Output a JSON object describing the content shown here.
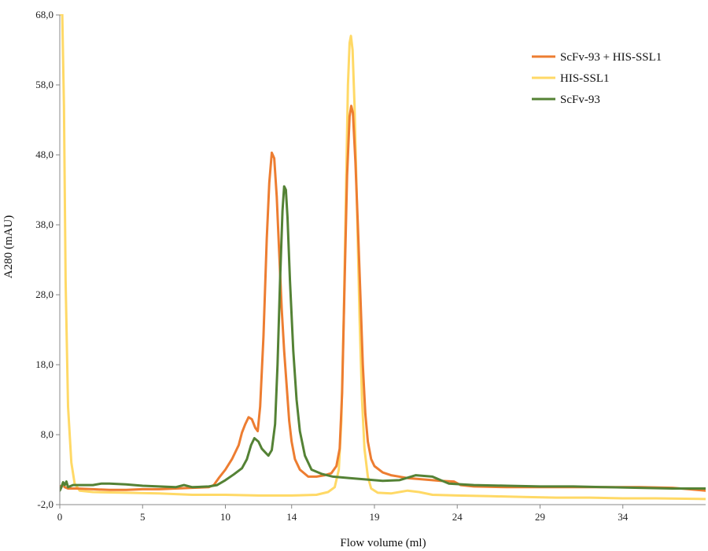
{
  "chart_data": {
    "type": "line",
    "title": "",
    "xlabel": "Flow volume (ml)",
    "ylabel": "A280 (mAU)",
    "xlim": [
      0,
      39
    ],
    "ylim": [
      -2.0,
      68.0
    ],
    "xticks": [
      0,
      5,
      10,
      14,
      19,
      24,
      29,
      34
    ],
    "xtick_labels": [
      "0",
      "5",
      "10",
      "14",
      "19",
      "24",
      "29",
      "34"
    ],
    "yticks": [
      -2.0,
      8.0,
      18.0,
      28.0,
      38.0,
      48.0,
      58.0,
      68.0
    ],
    "ytick_labels": [
      "-2,0",
      "8,0",
      "18,0",
      "28,0",
      "38,0",
      "48,0",
      "58,0",
      "68,0"
    ],
    "grid": false,
    "legend_position": "top-right",
    "series": [
      {
        "name": "ScFv-93 + HIS-SSL1",
        "color": "#ED7D31",
        "points": [
          [
            0.0,
            0.6
          ],
          [
            0.2,
            0.8
          ],
          [
            0.3,
            0.5
          ],
          [
            0.5,
            0.3
          ],
          [
            1,
            0.3
          ],
          [
            2,
            0.2
          ],
          [
            3,
            0.1
          ],
          [
            4,
            0.1
          ],
          [
            5,
            0.2
          ],
          [
            6,
            0.2
          ],
          [
            7,
            0.3
          ],
          [
            8,
            0.4
          ],
          [
            9,
            0.5
          ],
          [
            9.3,
            0.8
          ],
          [
            9.6,
            1.8
          ],
          [
            10,
            3.0
          ],
          [
            10.4,
            4.5
          ],
          [
            10.8,
            6.5
          ],
          [
            11.0,
            8.3
          ],
          [
            11.2,
            9.5
          ],
          [
            11.4,
            10.5
          ],
          [
            11.6,
            10.2
          ],
          [
            11.8,
            9.0
          ],
          [
            11.95,
            8.5
          ],
          [
            12.1,
            12.0
          ],
          [
            12.3,
            22.0
          ],
          [
            12.5,
            36.0
          ],
          [
            12.65,
            44.0
          ],
          [
            12.8,
            48.3
          ],
          [
            12.95,
            47.5
          ],
          [
            13.1,
            42.0
          ],
          [
            13.25,
            34.0
          ],
          [
            13.4,
            26.0
          ],
          [
            13.55,
            20.0
          ],
          [
            13.7,
            15.0
          ],
          [
            13.85,
            10.0
          ],
          [
            14.0,
            7.0
          ],
          [
            14.2,
            4.5
          ],
          [
            14.5,
            3.0
          ],
          [
            15.0,
            2.0
          ],
          [
            15.5,
            2.0
          ],
          [
            16.0,
            2.2
          ],
          [
            16.4,
            2.5
          ],
          [
            16.7,
            3.5
          ],
          [
            16.9,
            6.0
          ],
          [
            17.05,
            14.0
          ],
          [
            17.2,
            30.0
          ],
          [
            17.35,
            45.0
          ],
          [
            17.5,
            53.5
          ],
          [
            17.6,
            55.0
          ],
          [
            17.7,
            54.0
          ],
          [
            17.85,
            47.0
          ],
          [
            18.0,
            38.0
          ],
          [
            18.15,
            28.0
          ],
          [
            18.3,
            18.0
          ],
          [
            18.45,
            11.0
          ],
          [
            18.6,
            7.0
          ],
          [
            18.8,
            4.5
          ],
          [
            19.0,
            3.5
          ],
          [
            19.5,
            2.6
          ],
          [
            20,
            2.2
          ],
          [
            21,
            1.8
          ],
          [
            22,
            1.6
          ],
          [
            23,
            1.4
          ],
          [
            23.8,
            1.3
          ],
          [
            24.2,
            0.8
          ],
          [
            25,
            0.6
          ],
          [
            27,
            0.5
          ],
          [
            29,
            0.5
          ],
          [
            31,
            0.5
          ],
          [
            33,
            0.5
          ],
          [
            35,
            0.5
          ],
          [
            37,
            0.4
          ],
          [
            38,
            0.2
          ],
          [
            39,
            0.0
          ]
        ]
      },
      {
        "name": "HIS-SSL1",
        "color": "#FFD966",
        "points": [
          [
            0.0,
            68.0
          ],
          [
            0.12,
            72.0
          ],
          [
            0.25,
            55.0
          ],
          [
            0.35,
            30.0
          ],
          [
            0.5,
            12.0
          ],
          [
            0.7,
            4.0
          ],
          [
            0.9,
            1.0
          ],
          [
            1.2,
            0.0
          ],
          [
            2,
            -0.2
          ],
          [
            4,
            -0.3
          ],
          [
            6,
            -0.4
          ],
          [
            8,
            -0.6
          ],
          [
            10,
            -0.6
          ],
          [
            12,
            -0.7
          ],
          [
            14,
            -0.7
          ],
          [
            15.5,
            -0.6
          ],
          [
            16.2,
            -0.2
          ],
          [
            16.6,
            0.5
          ],
          [
            16.85,
            3.0
          ],
          [
            17.0,
            10.0
          ],
          [
            17.15,
            25.0
          ],
          [
            17.3,
            45.0
          ],
          [
            17.4,
            58.0
          ],
          [
            17.5,
            64.0
          ],
          [
            17.58,
            65.0
          ],
          [
            17.68,
            63.0
          ],
          [
            17.8,
            55.0
          ],
          [
            17.95,
            40.0
          ],
          [
            18.1,
            25.0
          ],
          [
            18.25,
            13.0
          ],
          [
            18.4,
            6.0
          ],
          [
            18.6,
            2.0
          ],
          [
            18.8,
            0.3
          ],
          [
            19.2,
            -0.3
          ],
          [
            20,
            -0.4
          ],
          [
            21,
            0.0
          ],
          [
            21.7,
            -0.2
          ],
          [
            22.5,
            -0.6
          ],
          [
            24,
            -0.7
          ],
          [
            26,
            -0.8
          ],
          [
            28,
            -0.9
          ],
          [
            30,
            -1.0
          ],
          [
            32,
            -1.0
          ],
          [
            34,
            -1.1
          ],
          [
            36,
            -1.1
          ],
          [
            39,
            -1.2
          ]
        ]
      },
      {
        "name": "ScFv-93",
        "color": "#548235",
        "points": [
          [
            0.0,
            0.0
          ],
          [
            0.1,
            0.5
          ],
          [
            0.2,
            1.2
          ],
          [
            0.3,
            0.8
          ],
          [
            0.4,
            1.3
          ],
          [
            0.5,
            0.5
          ],
          [
            0.8,
            0.8
          ],
          [
            1.5,
            0.8
          ],
          [
            2.0,
            0.8
          ],
          [
            2.5,
            1.0
          ],
          [
            3.0,
            1.0
          ],
          [
            4.0,
            0.9
          ],
          [
            5.0,
            0.7
          ],
          [
            6.0,
            0.6
          ],
          [
            7.0,
            0.5
          ],
          [
            7.5,
            0.8
          ],
          [
            8.0,
            0.5
          ],
          [
            9.0,
            0.6
          ],
          [
            9.5,
            0.8
          ],
          [
            10.0,
            1.5
          ],
          [
            10.5,
            2.3
          ],
          [
            11.0,
            3.2
          ],
          [
            11.3,
            4.5
          ],
          [
            11.55,
            6.5
          ],
          [
            11.75,
            7.5
          ],
          [
            12.0,
            7.0
          ],
          [
            12.2,
            6.0
          ],
          [
            12.4,
            5.5
          ],
          [
            12.6,
            5.0
          ],
          [
            12.8,
            5.8
          ],
          [
            13.0,
            9.5
          ],
          [
            13.15,
            18.0
          ],
          [
            13.3,
            30.0
          ],
          [
            13.45,
            40.0
          ],
          [
            13.55,
            43.5
          ],
          [
            13.65,
            43.0
          ],
          [
            13.75,
            39.0
          ],
          [
            13.9,
            30.0
          ],
          [
            14.1,
            20.0
          ],
          [
            14.3,
            13.0
          ],
          [
            14.5,
            8.5
          ],
          [
            14.8,
            5.0
          ],
          [
            15.2,
            3.0
          ],
          [
            15.8,
            2.4
          ],
          [
            16.5,
            2.0
          ],
          [
            17.5,
            1.8
          ],
          [
            18.5,
            1.6
          ],
          [
            19.5,
            1.4
          ],
          [
            20.5,
            1.5
          ],
          [
            21.5,
            2.2
          ],
          [
            22.5,
            2.0
          ],
          [
            23.0,
            1.5
          ],
          [
            23.5,
            1.0
          ],
          [
            25,
            0.8
          ],
          [
            27,
            0.7
          ],
          [
            29,
            0.6
          ],
          [
            31,
            0.6
          ],
          [
            33,
            0.5
          ],
          [
            35,
            0.4
          ],
          [
            37,
            0.3
          ],
          [
            39,
            0.3
          ]
        ]
      }
    ]
  }
}
